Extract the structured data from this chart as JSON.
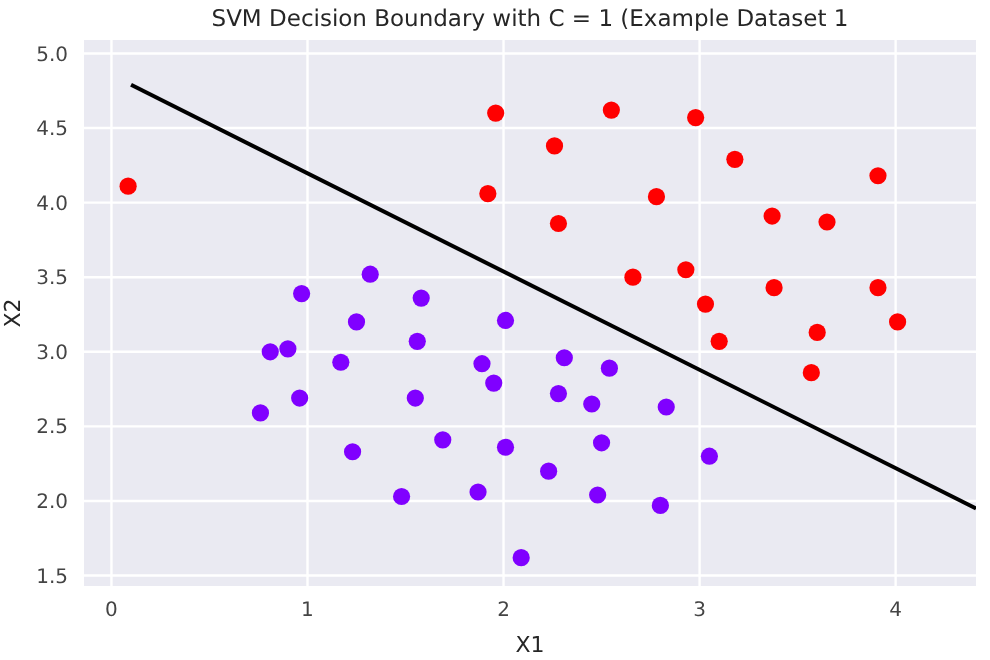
{
  "chart_data": {
    "type": "scatter",
    "title": "SVM Decision Boundary with C = 1 (Example Dataset 1",
    "xlabel": "X1",
    "ylabel": "X2",
    "xlim": [
      -0.14,
      4.41
    ],
    "ylim": [
      1.43,
      5.09
    ],
    "xticks": [
      0,
      1,
      2,
      3,
      4
    ],
    "yticks": [
      {
        "value": 1.5,
        "label": "1.5"
      },
      {
        "value": 2,
        "label": "2.0"
      },
      {
        "value": 2.5,
        "label": "2.5"
      },
      {
        "value": 3,
        "label": "3.0"
      },
      {
        "value": 3.5,
        "label": "3.5"
      },
      {
        "value": 4,
        "label": "4.0"
      },
      {
        "value": 4.5,
        "label": "4.5"
      },
      {
        "value": 5,
        "label": "5.0"
      }
    ],
    "grid": true,
    "marker": "circle",
    "series": [
      {
        "color": "#ff0000",
        "x": [
          0.085,
          1.96,
          1.92,
          2.55,
          2.98,
          2.26,
          3.18,
          3.91,
          2.78,
          3.37,
          3.65,
          2.28,
          2.66,
          2.93,
          3.38,
          3.91,
          3.03,
          4.01,
          3.6,
          3.1,
          3.57
        ],
        "values": [
          4.11,
          4.6,
          4.06,
          4.62,
          4.57,
          4.38,
          4.29,
          4.18,
          4.04,
          3.91,
          3.87,
          3.86,
          3.5,
          3.55,
          3.43,
          3.43,
          3.32,
          3.2,
          3.13,
          3.07,
          2.86
        ]
      },
      {
        "color": "#8000ff",
        "x": [
          1.32,
          0.97,
          1.58,
          1.25,
          2.01,
          2.31,
          2.54,
          2.28,
          2.45,
          2.83,
          2.5,
          2.23,
          3.05,
          2.48,
          2.8,
          2.09,
          0.81,
          0.9,
          1.56,
          1.17,
          1.89,
          1.95,
          0.96,
          1.55,
          0.76,
          1.69,
          1.23,
          2.01,
          1.48,
          1.87
        ],
        "values": [
          3.52,
          3.39,
          3.36,
          3.2,
          3.21,
          2.96,
          2.89,
          2.72,
          2.65,
          2.63,
          2.39,
          2.2,
          2.3,
          2.04,
          1.97,
          1.62,
          3.0,
          3.02,
          3.07,
          2.93,
          2.92,
          2.79,
          2.69,
          2.69,
          2.59,
          2.41,
          2.33,
          2.36,
          2.03,
          2.06
        ]
      },
      {
        "type": "line",
        "color": "#000000",
        "marker": "none",
        "x": [
          0.1,
          4.41
        ],
        "values": [
          4.79,
          1.95
        ]
      }
    ]
  }
}
